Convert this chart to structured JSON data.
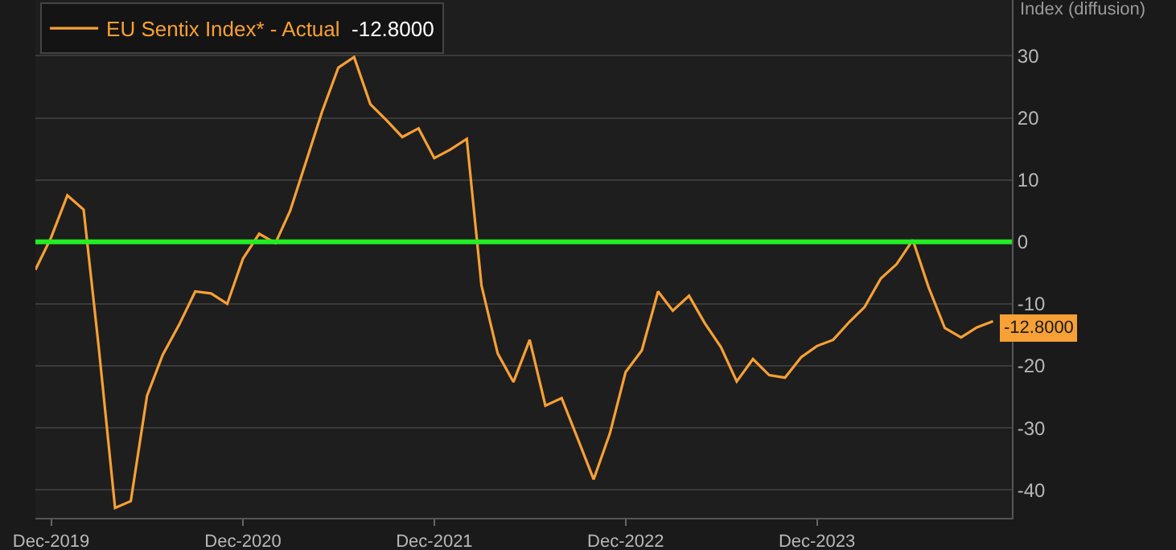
{
  "chart_data": {
    "type": "line",
    "ylabel": "Index (diffusion)",
    "x": [
      "2019-11",
      "2019-12",
      "2020-01",
      "2020-02",
      "2020-03",
      "2020-04",
      "2020-05",
      "2020-06",
      "2020-07",
      "2020-08",
      "2020-09",
      "2020-10",
      "2020-11",
      "2020-12",
      "2021-01",
      "2021-02",
      "2021-03",
      "2021-04",
      "2021-05",
      "2021-06",
      "2021-07",
      "2021-08",
      "2021-09",
      "2021-10",
      "2021-11",
      "2021-12",
      "2022-01",
      "2022-02",
      "2022-03",
      "2022-04",
      "2022-05",
      "2022-06",
      "2022-07",
      "2022-08",
      "2022-09",
      "2022-10",
      "2022-11",
      "2022-12",
      "2023-01",
      "2023-02",
      "2023-03",
      "2023-04",
      "2023-05",
      "2023-06",
      "2023-07",
      "2023-08",
      "2023-09",
      "2023-10",
      "2023-11",
      "2023-12",
      "2024-01",
      "2024-02",
      "2024-03",
      "2024-04",
      "2024-05",
      "2024-06",
      "2024-07",
      "2024-08",
      "2024-09",
      "2024-10",
      "2024-11"
    ],
    "series": [
      {
        "name": "EU Sentix Index* - Actual",
        "color": "#f7a035",
        "values": [
          -4.5,
          0.7,
          7.5,
          5.2,
          -17.1,
          -42.9,
          -41.8,
          -24.8,
          -18.2,
          -13.4,
          -8.0,
          -8.3,
          -10.0,
          -2.7,
          1.3,
          -0.2,
          5.0,
          13.1,
          21.0,
          28.1,
          29.8,
          22.2,
          19.6,
          16.9,
          18.3,
          13.5,
          14.9,
          16.6,
          -7.0,
          -18.0,
          -22.6,
          -15.8,
          -26.4,
          -25.2,
          -31.8,
          -38.3,
          -30.9,
          -21.0,
          -17.5,
          -8.0,
          -11.1,
          -8.7,
          -13.1,
          -17.0,
          -22.5,
          -18.9,
          -21.5,
          -21.9,
          -18.6,
          -16.8,
          -15.8,
          -12.9,
          -10.5,
          -5.9,
          -3.6,
          0.3,
          -7.3,
          -13.9,
          -15.4,
          -13.8,
          -12.8
        ],
        "value_labels": [
          null,
          null,
          null,
          null,
          null,
          null,
          null,
          null,
          null,
          null,
          null,
          null,
          null,
          null,
          null,
          null,
          null,
          null,
          null,
          null,
          null,
          null,
          null,
          null,
          null,
          null,
          null,
          null,
          null,
          null,
          null,
          null,
          null,
          null,
          null,
          null,
          null,
          null,
          null,
          null,
          null,
          null,
          null,
          null,
          null,
          null,
          null,
          null,
          null,
          null,
          null,
          null,
          null,
          null,
          null,
          null,
          null,
          null,
          null,
          null,
          "-12.8000"
        ]
      }
    ],
    "xlim": [
      "2019-11-01",
      "2024-12-07"
    ],
    "xticks": [
      {
        "value": "2019-12-01",
        "label": "Dec-2019"
      },
      {
        "value": "2020-12-01",
        "label": "Dec-2020"
      },
      {
        "value": "2021-12-01",
        "label": "Dec-2021"
      },
      {
        "value": "2022-12-01",
        "label": "Dec-2022"
      },
      {
        "value": "2023-12-01",
        "label": "Dec-2023"
      }
    ],
    "ylim": [
      -44.5,
      39
    ],
    "yticks": [
      -40,
      -30,
      -20,
      -10,
      0,
      10,
      20,
      30
    ],
    "ref_lines": [
      {
        "axis": "y",
        "value": 0,
        "color": "#22ee22"
      }
    ],
    "grid": "y",
    "legend": "top left"
  }
}
